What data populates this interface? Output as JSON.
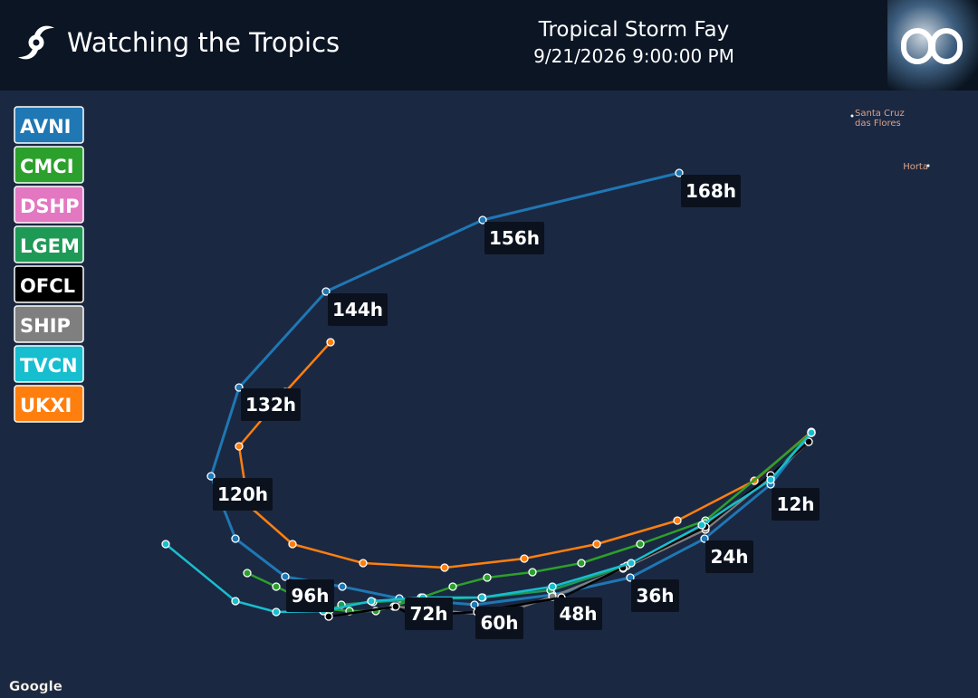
{
  "header": {
    "title": "Watching the Tropics",
    "storm": "Tropical Storm Fay",
    "datetime": "9/21/2026 9:00:00 PM"
  },
  "legend": [
    {
      "name": "AVNI",
      "color": "#1f77b4"
    },
    {
      "name": "CMCI",
      "color": "#2ca02c"
    },
    {
      "name": "DSHP",
      "color": "#e377c2"
    },
    {
      "name": "LGEM",
      "color": "#1e9a56"
    },
    {
      "name": "OFCL",
      "color": "#000000"
    },
    {
      "name": "SHIP",
      "color": "#7f7f7f"
    },
    {
      "name": "TVCN",
      "color": "#17becf"
    },
    {
      "name": "UKXI",
      "color": "#ff7f0e"
    }
  ],
  "forecast_hours": [
    "168h",
    "156h",
    "144h",
    "132h",
    "120h",
    "96h",
    "72h",
    "60h",
    "48h",
    "36h",
    "24h",
    "12h"
  ],
  "places": [
    {
      "lines": [
        "Santa Cruz",
        "das Flores"
      ]
    },
    {
      "lines": [
        "Horta"
      ]
    }
  ],
  "attribution": "Google"
}
